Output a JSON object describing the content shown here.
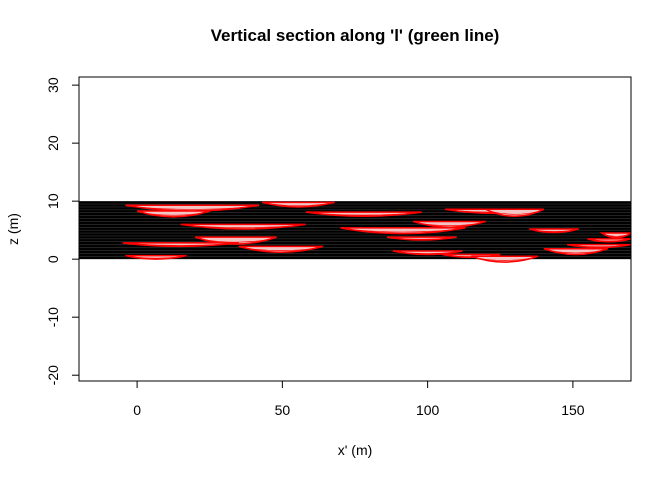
{
  "chart_data": {
    "type": "section",
    "title": "Vertical section along 'l' (green line)",
    "xlabel": "x' (m)",
    "ylabel": "z (m)",
    "xlim": [
      -20,
      170
    ],
    "ylim": [
      -21,
      31.4
    ],
    "xticks": [
      0,
      50,
      100,
      150
    ],
    "yticks": [
      -20,
      -10,
      0,
      10,
      20,
      30
    ],
    "section_z": [
      0,
      10
    ],
    "section_color": "#000000",
    "lens_color": "#ff0000",
    "lens_fill": "#f2c4c4",
    "lenses": [
      {
        "x": [
          -4,
          42
        ],
        "z": 9.3,
        "depth": 1.0
      },
      {
        "x": [
          0,
          25
        ],
        "z": 8.3,
        "depth": 1.0
      },
      {
        "x": [
          43,
          68
        ],
        "z": 9.8,
        "depth": 0.8
      },
      {
        "x": [
          58,
          98
        ],
        "z": 8.1,
        "depth": 0.7
      },
      {
        "x": [
          15,
          58
        ],
        "z": 6.0,
        "depth": 0.8
      },
      {
        "x": [
          70,
          113
        ],
        "z": 5.4,
        "depth": 1.0
      },
      {
        "x": [
          95,
          120
        ],
        "z": 6.5,
        "depth": 1.0
      },
      {
        "x": [
          106,
          140
        ],
        "z": 8.6,
        "depth": 0.7
      },
      {
        "x": [
          120,
          140
        ],
        "z": 8.6,
        "depth": 1.2
      },
      {
        "x": [
          135,
          152
        ],
        "z": 5.2,
        "depth": 0.6
      },
      {
        "x": [
          20,
          48
        ],
        "z": 3.8,
        "depth": 1.2
      },
      {
        "x": [
          -5,
          35
        ],
        "z": 2.8,
        "depth": 0.6
      },
      {
        "x": [
          35,
          64
        ],
        "z": 2.2,
        "depth": 1.0
      },
      {
        "x": [
          86,
          110
        ],
        "z": 3.8,
        "depth": 0.5
      },
      {
        "x": [
          -4,
          17
        ],
        "z": 0.6,
        "depth": 0.6
      },
      {
        "x": [
          88,
          112
        ],
        "z": 1.4,
        "depth": 0.6
      },
      {
        "x": [
          105,
          125
        ],
        "z": 0.8,
        "depth": 0.5
      },
      {
        "x": [
          115,
          138
        ],
        "z": 0.5,
        "depth": 1.0
      },
      {
        "x": [
          140,
          162
        ],
        "z": 1.8,
        "depth": 1.0
      },
      {
        "x": [
          148,
          170
        ],
        "z": 2.5,
        "depth": 0.5
      },
      {
        "x": [
          160,
          170
        ],
        "z": 4.5,
        "depth": 0.8
      },
      {
        "x": [
          155,
          170
        ],
        "z": 3.5,
        "depth": 0.5
      }
    ]
  }
}
